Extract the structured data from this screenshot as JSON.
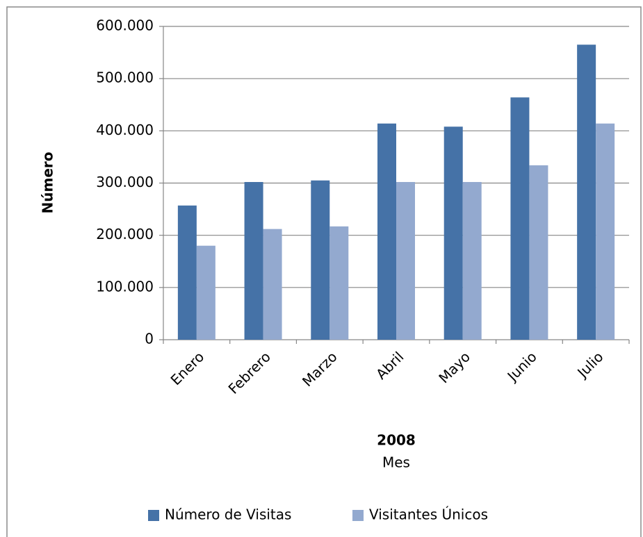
{
  "chart_data": {
    "type": "bar",
    "categories": [
      "Enero",
      "Febrero",
      "Marzo",
      "Abril",
      "Mayo",
      "Junio",
      "Julio"
    ],
    "series": [
      {
        "name": "Número de Visitas",
        "color": "#4572a7",
        "values": [
          257000,
          302000,
          305000,
          414000,
          408000,
          464000,
          565000
        ]
      },
      {
        "name": "Visitantes Únicos",
        "color": "#93a9cf",
        "values": [
          180000,
          212000,
          217000,
          302000,
          302000,
          334000,
          414000
        ]
      }
    ],
    "ylabel": "Número",
    "xlabel": [
      "2008",
      "Mes"
    ],
    "ylim": [
      0,
      600000
    ],
    "yticks": [
      0,
      {
        "value": 100000,
        "label": "100.000"
      },
      {
        "value": 200000,
        "label": "200.000"
      },
      {
        "value": 300000,
        "label": "300.000"
      },
      {
        "value": 400000,
        "label": "400.000"
      },
      {
        "value": 500000,
        "label": "500.000"
      },
      {
        "value": 600000,
        "label": "600.000"
      }
    ],
    "grid": true,
    "legend": "bottom"
  }
}
